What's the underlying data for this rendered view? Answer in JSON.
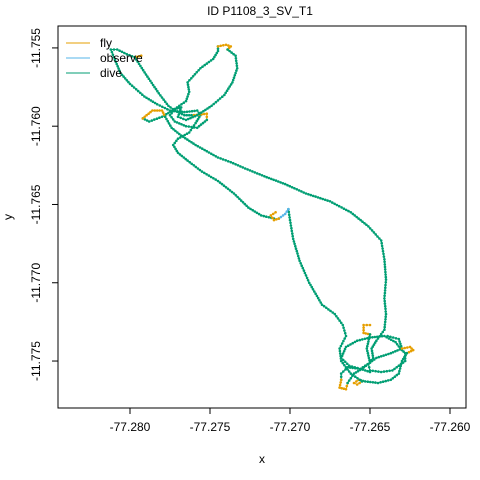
{
  "chart_data": {
    "type": "line",
    "title": "ID P1108_3_SV_T1",
    "xlabel": "x",
    "ylabel": "y",
    "xlim": [
      -77.2845,
      -77.259
    ],
    "ylim": [
      -11.778,
      -11.7536
    ],
    "xticks": [
      -77.28,
      -77.275,
      -77.27,
      -77.265,
      -77.26
    ],
    "yticks": [
      -11.755,
      -11.76,
      -11.765,
      -11.77,
      -11.775
    ],
    "xtick_labels": [
      "-77.280",
      "-77.275",
      "-77.270",
      "-77.265",
      "-77.260"
    ],
    "ytick_labels": [
      "-11.755",
      "-11.760",
      "-11.765",
      "-11.770",
      "-11.775"
    ],
    "legend": {
      "placement": "top-left",
      "entries": [
        {
          "label": "fly",
          "color": "#E69F00"
        },
        {
          "label": "observe",
          "color": "#56B4E9"
        },
        {
          "label": "dive",
          "color": "#009E73"
        }
      ]
    },
    "colors": {
      "fly": "#E69F00",
      "observe": "#56B4E9",
      "dive": "#009E73"
    },
    "segments": [
      {
        "behavior": "dive",
        "points": [
          [
            -77.271,
            -11.7659
          ],
          [
            -77.2718,
            -11.7657
          ],
          [
            -77.2726,
            -11.7652
          ],
          [
            -77.2735,
            -11.7643
          ],
          [
            -77.2745,
            -11.7635
          ],
          [
            -77.2755,
            -11.7629
          ],
          [
            -77.2764,
            -11.7622
          ],
          [
            -77.277,
            -11.7617
          ],
          [
            -77.2773,
            -11.7612
          ],
          [
            -77.277,
            -11.7608
          ],
          [
            -77.2763,
            -11.7604
          ],
          [
            -77.2759,
            -11.7598
          ],
          [
            -77.2756,
            -11.7593
          ],
          [
            -77.2758,
            -11.759
          ],
          [
            -77.2766,
            -11.7591
          ],
          [
            -77.2775,
            -11.759
          ],
          [
            -77.2783,
            -11.7586
          ],
          [
            -77.2791,
            -11.7581
          ],
          [
            -77.28,
            -11.7573
          ],
          [
            -77.2806,
            -11.7566
          ],
          [
            -77.281,
            -11.7556
          ],
          [
            -77.2812,
            -11.7551
          ],
          [
            -77.2808,
            -11.7551
          ],
          [
            -77.2802,
            -11.7554
          ],
          [
            -77.2797,
            -11.7556
          ]
        ]
      },
      {
        "behavior": "fly",
        "points": [
          [
            -77.2797,
            -11.7556
          ],
          [
            -77.2793,
            -11.7555
          ]
        ]
      },
      {
        "behavior": "dive",
        "points": [
          [
            -77.2797,
            -11.7556
          ],
          [
            -77.279,
            -11.7567
          ],
          [
            -77.2782,
            -11.7579
          ],
          [
            -77.2776,
            -11.7587
          ],
          [
            -77.2772,
            -11.759
          ],
          [
            -77.2766,
            -11.7593
          ],
          [
            -77.276,
            -11.7593
          ]
        ]
      },
      {
        "behavior": "fly",
        "points": [
          [
            -77.276,
            -11.7593
          ],
          [
            -77.2752,
            -11.7592
          ],
          [
            -77.2752,
            -11.7596
          ]
        ]
      },
      {
        "behavior": "dive",
        "points": [
          [
            -77.2752,
            -11.7596
          ],
          [
            -77.2758,
            -11.7601
          ],
          [
            -77.2765,
            -11.76
          ],
          [
            -77.2772,
            -11.7597
          ],
          [
            -77.2775,
            -11.7593
          ],
          [
            -77.2772,
            -11.7589
          ],
          [
            -77.2765,
            -11.7584
          ],
          [
            -77.2763,
            -11.7578
          ],
          [
            -77.2764,
            -11.7572
          ],
          [
            -77.2756,
            -11.7563
          ],
          [
            -77.2748,
            -11.7557
          ],
          [
            -77.2745,
            -11.7552
          ],
          [
            -77.2745,
            -11.7549
          ]
        ]
      },
      {
        "behavior": "fly",
        "points": [
          [
            -77.2745,
            -11.7549
          ],
          [
            -77.274,
            -11.7548
          ],
          [
            -77.2737,
            -11.7549
          ],
          [
            -77.2739,
            -11.7551
          ]
        ]
      },
      {
        "behavior": "dive",
        "points": [
          [
            -77.2739,
            -11.7551
          ],
          [
            -77.2734,
            -11.7555
          ],
          [
            -77.2733,
            -11.7563
          ],
          [
            -77.2736,
            -11.7572
          ],
          [
            -77.2741,
            -11.758
          ],
          [
            -77.2749,
            -11.7587
          ],
          [
            -77.2758,
            -11.7593
          ],
          [
            -77.2765,
            -11.7596
          ],
          [
            -77.277,
            -11.7594
          ],
          [
            -77.2768,
            -11.7588
          ],
          [
            -77.2772,
            -11.7589
          ],
          [
            -77.278,
            -11.7594
          ],
          [
            -77.2788,
            -11.7597
          ],
          [
            -77.2792,
            -11.7595
          ]
        ]
      },
      {
        "behavior": "fly",
        "points": [
          [
            -77.2792,
            -11.7595
          ],
          [
            -77.2786,
            -11.759
          ],
          [
            -77.278,
            -11.759
          ],
          [
            -77.2778,
            -11.7594
          ]
        ]
      },
      {
        "behavior": "dive",
        "points": [
          [
            -77.2778,
            -11.7594
          ],
          [
            -77.2774,
            -11.7601
          ],
          [
            -77.2768,
            -11.7606
          ],
          [
            -77.2759,
            -11.7612
          ],
          [
            -77.2752,
            -11.7616
          ],
          [
            -77.2745,
            -11.762
          ],
          [
            -77.2737,
            -11.7623
          ],
          [
            -77.2728,
            -11.7627
          ],
          [
            -77.2716,
            -11.7632
          ],
          [
            -77.2703,
            -11.7637
          ],
          [
            -77.269,
            -11.7643
          ],
          [
            -77.2675,
            -11.7648
          ],
          [
            -77.2662,
            -11.7655
          ],
          [
            -77.2651,
            -11.7664
          ],
          [
            -77.2643,
            -11.7673
          ],
          [
            -77.2641,
            -11.7685
          ],
          [
            -77.264,
            -11.7698
          ],
          [
            -77.2641,
            -11.771
          ],
          [
            -77.264,
            -11.772
          ],
          [
            -77.2641,
            -11.773
          ],
          [
            -77.2646,
            -11.7737
          ],
          [
            -77.2649,
            -11.7742
          ],
          [
            -77.2648,
            -11.7748
          ],
          [
            -77.2651,
            -11.7752
          ],
          [
            -77.265,
            -11.7756
          ],
          [
            -77.2643,
            -11.7757
          ],
          [
            -77.2636,
            -11.7756
          ],
          [
            -77.2628,
            -11.775
          ],
          [
            -77.2628,
            -11.7745
          ],
          [
            -77.2631,
            -11.7742
          ],
          [
            -77.2634,
            -11.7738
          ],
          [
            -77.2641,
            -11.7734
          ],
          [
            -77.265,
            -11.7735
          ],
          [
            -77.2658,
            -11.7737
          ],
          [
            -77.2665,
            -11.7741
          ],
          [
            -77.2668,
            -11.7748
          ],
          [
            -77.2663,
            -11.7753
          ],
          [
            -77.2656,
            -11.7755
          ],
          [
            -77.265,
            -11.7757
          ]
        ]
      },
      {
        "behavior": "fly",
        "points": [
          [
            -77.265,
            -11.7727
          ],
          [
            -77.2654,
            -11.7727
          ],
          [
            -77.2654,
            -11.7732
          ],
          [
            -77.265,
            -11.7733
          ]
        ]
      },
      {
        "behavior": "dive",
        "points": [
          [
            -77.265,
            -11.7733
          ],
          [
            -77.2652,
            -11.7742
          ],
          [
            -77.265,
            -11.7751
          ],
          [
            -77.2656,
            -11.7755
          ],
          [
            -77.2664,
            -11.7754
          ],
          [
            -77.2668,
            -11.7758
          ],
          [
            -77.2668,
            -11.7762
          ]
        ]
      },
      {
        "behavior": "fly",
        "points": [
          [
            -77.2668,
            -11.7762
          ],
          [
            -77.2669,
            -11.7767
          ],
          [
            -77.2665,
            -11.7768
          ],
          [
            -77.2664,
            -11.7764
          ]
        ]
      },
      {
        "behavior": "dive",
        "points": [
          [
            -77.2664,
            -11.7764
          ],
          [
            -77.266,
            -11.7758
          ],
          [
            -77.2655,
            -11.7755
          ],
          [
            -77.265,
            -11.7751
          ],
          [
            -77.2646,
            -11.7748
          ],
          [
            -77.2637,
            -11.7745
          ],
          [
            -77.263,
            -11.7742
          ],
          [
            -77.2632,
            -11.7736
          ],
          [
            -77.2639,
            -11.7734
          ]
        ]
      },
      {
        "behavior": "fly",
        "points": [
          [
            -77.263,
            -11.7742
          ],
          [
            -77.2625,
            -11.7741
          ],
          [
            -77.2623,
            -11.7743
          ],
          [
            -77.2627,
            -11.7745
          ]
        ]
      },
      {
        "behavior": "dive",
        "points": [
          [
            -77.2627,
            -11.7745
          ],
          [
            -77.263,
            -11.775
          ],
          [
            -77.2632,
            -11.7758
          ],
          [
            -77.2637,
            -11.7762
          ],
          [
            -77.2645,
            -11.7764
          ],
          [
            -77.2653,
            -11.7763
          ],
          [
            -77.2657,
            -11.7762
          ]
        ]
      },
      {
        "behavior": "fly",
        "points": [
          [
            -77.2657,
            -11.7762
          ],
          [
            -77.266,
            -11.7764
          ],
          [
            -77.2658,
            -11.7765
          ],
          [
            -77.2655,
            -11.7763
          ]
        ]
      },
      {
        "behavior": "dive",
        "points": [
          [
            -77.2655,
            -11.7763
          ],
          [
            -77.2662,
            -11.7758
          ],
          [
            -77.2668,
            -11.775
          ],
          [
            -77.2669,
            -11.7742
          ],
          [
            -77.2665,
            -11.7734
          ],
          [
            -77.2667,
            -11.7727
          ],
          [
            -77.2672,
            -11.772
          ],
          [
            -77.268,
            -11.7714
          ],
          [
            -77.2688,
            -11.77
          ],
          [
            -77.2694,
            -11.7686
          ],
          [
            -77.2698,
            -11.7672
          ],
          [
            -77.27,
            -11.766
          ],
          [
            -77.2701,
            -11.7653
          ]
        ]
      },
      {
        "behavior": "observe",
        "points": [
          [
            -77.2701,
            -11.7653
          ],
          [
            -77.2703,
            -11.7656
          ],
          [
            -77.2707,
            -11.7659
          ]
        ]
      },
      {
        "behavior": "fly",
        "points": [
          [
            -77.2707,
            -11.7659
          ],
          [
            -77.271,
            -11.766
          ],
          [
            -77.2712,
            -11.7657
          ],
          [
            -77.2709,
            -11.7655
          ]
        ]
      }
    ]
  }
}
